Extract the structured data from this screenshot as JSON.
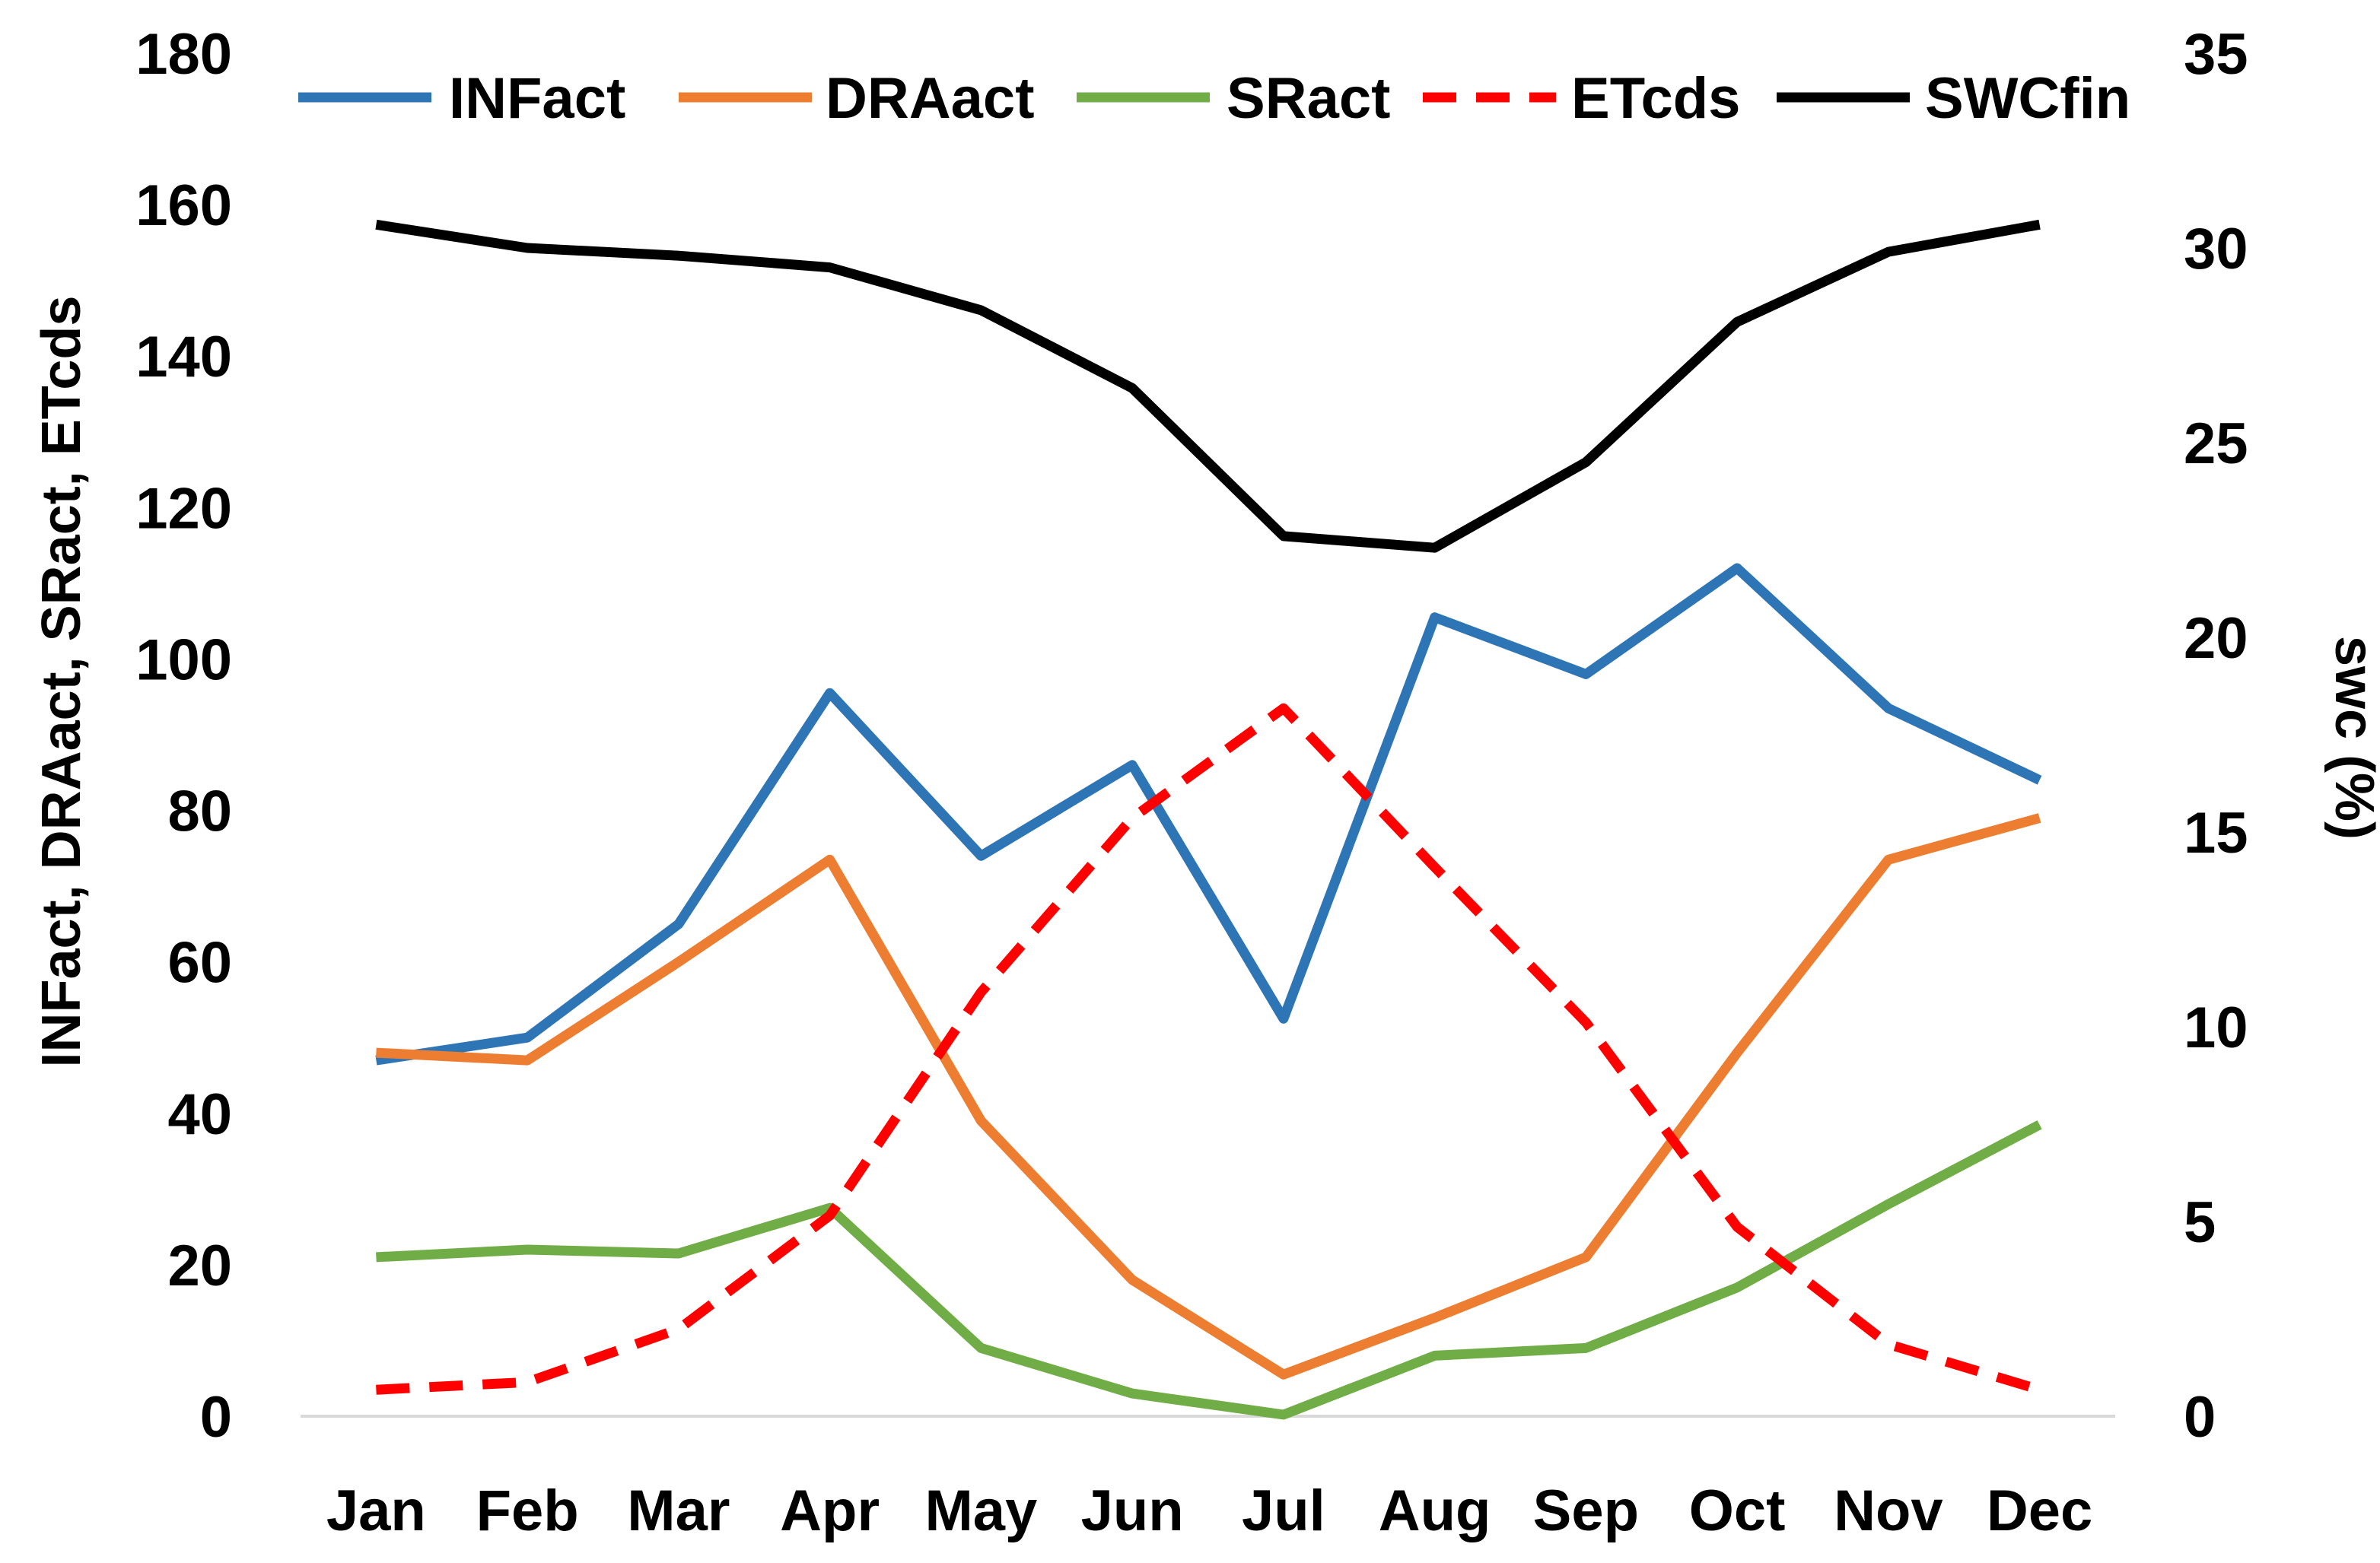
{
  "chart_data": {
    "type": "line",
    "categories": [
      "Jan",
      "Feb",
      "Mar",
      "Apr",
      "May",
      "Jun",
      "Jul",
      "Aug",
      "Sep",
      "Oct",
      "Nov",
      "Dec"
    ],
    "series": [
      {
        "name": "INFact",
        "axis": "left",
        "color": "#2E75B6",
        "dashed": false,
        "values": [
          47,
          50,
          65,
          95.5,
          74,
          86,
          52.5,
          105.5,
          98,
          112,
          93.5,
          84
        ]
      },
      {
        "name": "DRAact",
        "axis": "left",
        "color": "#ED7D31",
        "dashed": false,
        "values": [
          48,
          47,
          60,
          73.5,
          39,
          18,
          5.5,
          13,
          21,
          48,
          73.5,
          79
        ]
      },
      {
        "name": "SRact",
        "axis": "left",
        "color": "#70AD47",
        "dashed": false,
        "values": [
          21,
          22,
          21.5,
          27.5,
          9,
          3,
          0.2,
          8,
          9,
          17,
          28,
          38.5
        ]
      },
      {
        "name": "ETcds",
        "axis": "left",
        "color": "#FF0000",
        "dashed": true,
        "values": [
          3.5,
          4.5,
          11.5,
          26.5,
          56,
          79,
          93.5,
          72.5,
          52,
          25,
          9.5,
          3.5
        ]
      },
      {
        "name": "SWCfin",
        "axis": "right",
        "color": "#000000",
        "dashed": false,
        "values": [
          30.6,
          30.0,
          29.8,
          29.5,
          28.4,
          26.4,
          22.6,
          22.3,
          24.5,
          28.1,
          29.9,
          30.6
        ]
      }
    ],
    "title": "",
    "xlabel": "",
    "ylabel": "INFact, DRAact, SRact, ETcds",
    "ylabel_right": "swc (%)",
    "ylim": [
      0,
      180
    ],
    "ylim_right": [
      0,
      35
    ],
    "yticks": [
      "0",
      "20",
      "40",
      "60",
      "80",
      "100",
      "120",
      "140",
      "160",
      "180"
    ],
    "yticks_right": [
      "0",
      "5",
      "10",
      "15",
      "20",
      "25",
      "30",
      "35"
    ],
    "legend_position": "top"
  }
}
